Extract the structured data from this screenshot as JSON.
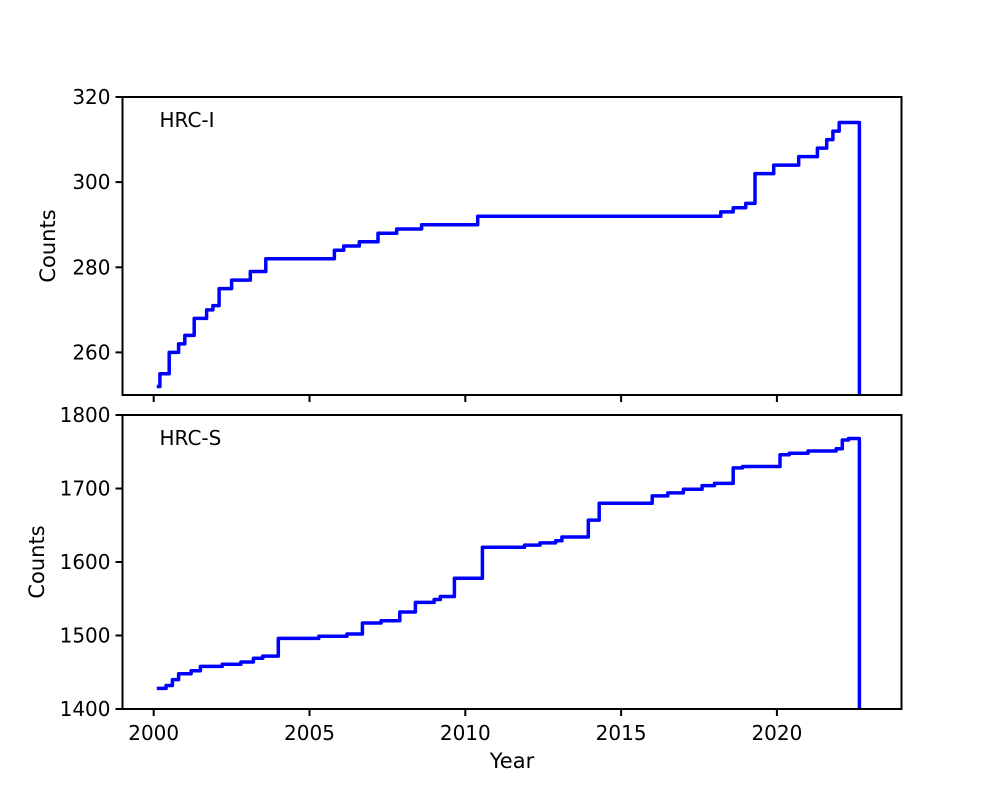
{
  "figure": {
    "background_color": "#ffffff",
    "axis_color": "#000000",
    "line_color": "#0000ff",
    "xlabel": "Year"
  },
  "chart_data": [
    {
      "type": "line",
      "panel_label": "HRC-I",
      "ylabel": "Counts",
      "xlabel": "",
      "xlim": [
        1999,
        2024
      ],
      "ylim": [
        250,
        320
      ],
      "xticks": [
        2000,
        2005,
        2010,
        2015,
        2020
      ],
      "xtick_labels": [
        "2000",
        "2005",
        "2010",
        "2015",
        "2020"
      ],
      "show_xtick_labels": false,
      "yticks": [
        260,
        280,
        300,
        320
      ],
      "ytick_labels": [
        "260",
        "280",
        "300",
        "320"
      ],
      "grid": false,
      "legend": "none",
      "series": [
        {
          "name": "HRC-I",
          "color": "#0000ff",
          "line_width": 3.5,
          "step": "post",
          "points": [
            [
              2000.1,
              252
            ],
            [
              2000.2,
              255
            ],
            [
              2000.5,
              260
            ],
            [
              2000.8,
              262
            ],
            [
              2001.0,
              264
            ],
            [
              2001.3,
              268
            ],
            [
              2001.7,
              270
            ],
            [
              2001.9,
              271
            ],
            [
              2002.1,
              275
            ],
            [
              2002.5,
              277
            ],
            [
              2003.1,
              279
            ],
            [
              2003.6,
              282
            ],
            [
              2005.8,
              284
            ],
            [
              2006.1,
              285
            ],
            [
              2006.6,
              286
            ],
            [
              2007.2,
              288
            ],
            [
              2007.8,
              289
            ],
            [
              2008.6,
              290
            ],
            [
              2010.4,
              292
            ],
            [
              2018.2,
              293
            ],
            [
              2018.6,
              294
            ],
            [
              2019.0,
              295
            ],
            [
              2019.3,
              302
            ],
            [
              2019.9,
              304
            ],
            [
              2020.7,
              306
            ],
            [
              2021.3,
              308
            ],
            [
              2021.6,
              310
            ],
            [
              2021.8,
              312
            ],
            [
              2022.0,
              314
            ],
            [
              2022.65,
              314
            ],
            [
              2022.65,
              250
            ]
          ]
        }
      ]
    },
    {
      "type": "line",
      "panel_label": "HRC-S",
      "ylabel": "Counts",
      "xlabel": "Year",
      "xlim": [
        1999,
        2024
      ],
      "ylim": [
        1400,
        1800
      ],
      "xticks": [
        2000,
        2005,
        2010,
        2015,
        2020
      ],
      "xtick_labels": [
        "2000",
        "2005",
        "2010",
        "2015",
        "2020"
      ],
      "show_xtick_labels": true,
      "yticks": [
        1400,
        1500,
        1600,
        1700,
        1800
      ],
      "ytick_labels": [
        "1400",
        "1500",
        "1600",
        "1700",
        "1800"
      ],
      "grid": false,
      "legend": "none",
      "series": [
        {
          "name": "HRC-S",
          "color": "#0000ff",
          "line_width": 3.5,
          "step": "post",
          "points": [
            [
              2000.1,
              1428
            ],
            [
              2000.4,
              1432
            ],
            [
              2000.6,
              1440
            ],
            [
              2000.8,
              1448
            ],
            [
              2001.2,
              1452
            ],
            [
              2001.5,
              1458
            ],
            [
              2002.2,
              1461
            ],
            [
              2002.8,
              1464
            ],
            [
              2003.2,
              1469
            ],
            [
              2003.5,
              1472
            ],
            [
              2004.0,
              1496
            ],
            [
              2005.3,
              1499
            ],
            [
              2006.2,
              1502
            ],
            [
              2006.7,
              1517
            ],
            [
              2007.3,
              1520
            ],
            [
              2007.9,
              1532
            ],
            [
              2008.4,
              1545
            ],
            [
              2009.0,
              1549
            ],
            [
              2009.2,
              1553
            ],
            [
              2009.65,
              1578
            ],
            [
              2010.55,
              1620
            ],
            [
              2011.9,
              1623
            ],
            [
              2012.4,
              1626
            ],
            [
              2012.9,
              1629
            ],
            [
              2013.1,
              1634
            ],
            [
              2013.95,
              1657
            ],
            [
              2014.3,
              1680
            ],
            [
              2016.0,
              1690
            ],
            [
              2016.5,
              1694
            ],
            [
              2017.0,
              1699
            ],
            [
              2017.6,
              1704
            ],
            [
              2018.0,
              1707
            ],
            [
              2018.6,
              1728
            ],
            [
              2018.9,
              1730
            ],
            [
              2020.1,
              1746
            ],
            [
              2020.4,
              1748
            ],
            [
              2021.0,
              1751
            ],
            [
              2021.9,
              1754
            ],
            [
              2022.1,
              1766
            ],
            [
              2022.3,
              1768
            ],
            [
              2022.65,
              1768
            ],
            [
              2022.65,
              1400
            ]
          ]
        }
      ]
    }
  ]
}
